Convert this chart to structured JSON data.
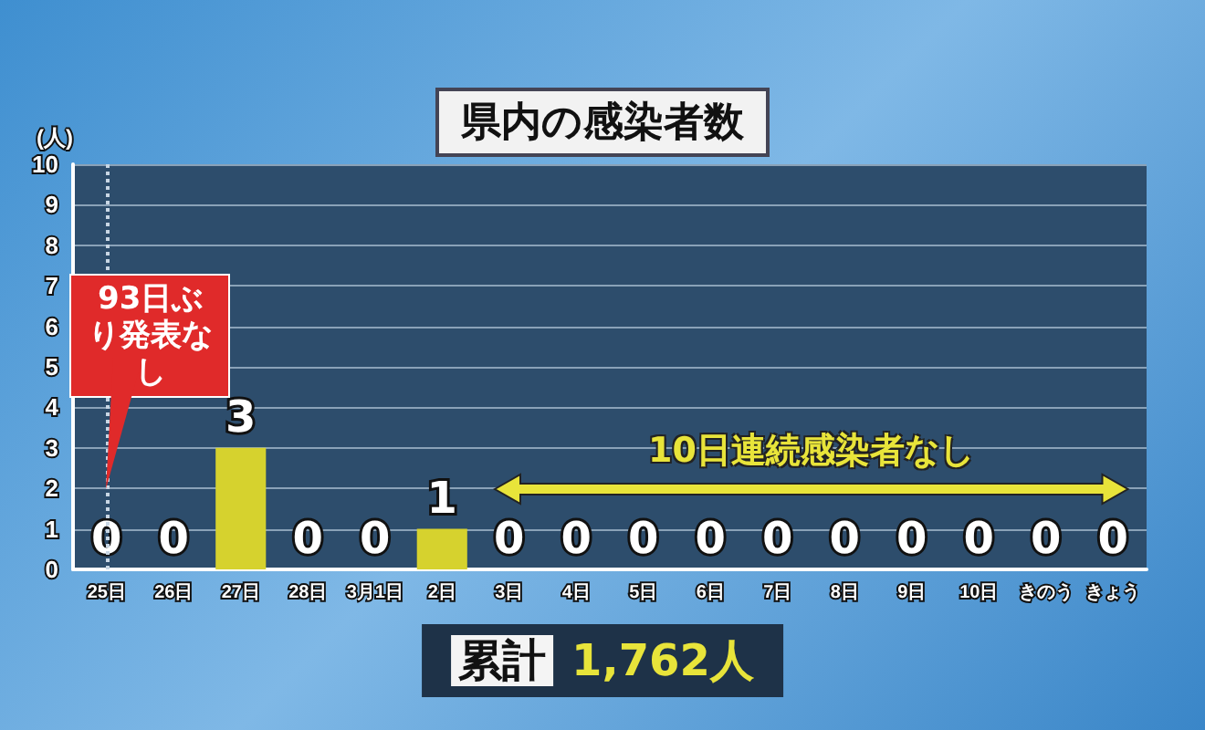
{
  "chart_data": {
    "type": "bar",
    "title": "県内の感染者数",
    "ylabel": "(人)",
    "categories": [
      "25日",
      "26日",
      "27日",
      "28日",
      "3月1日",
      "2日",
      "3日",
      "4日",
      "5日",
      "6日",
      "7日",
      "8日",
      "9日",
      "10日",
      "きのう",
      "きょう"
    ],
    "values": [
      0,
      0,
      3,
      0,
      0,
      1,
      0,
      0,
      0,
      0,
      0,
      0,
      0,
      0,
      0,
      0
    ],
    "color": "#d6d22e",
    "ylim": [
      0,
      10
    ],
    "yticks": [
      0,
      1,
      2,
      3,
      4,
      5,
      6,
      7,
      8,
      9,
      10
    ],
    "grid": "y",
    "data_labels": true,
    "ref_lines": [
      {
        "axis": "x",
        "value": "25日",
        "color": "#c8d6e4",
        "line_style": "dotted"
      }
    ],
    "annotations": [
      {
        "text": "93日ぶり発表なし",
        "x": "25日",
        "y": 2
      },
      "10日連続感染者なし",
      "累計 1,762人"
    ]
  }
}
